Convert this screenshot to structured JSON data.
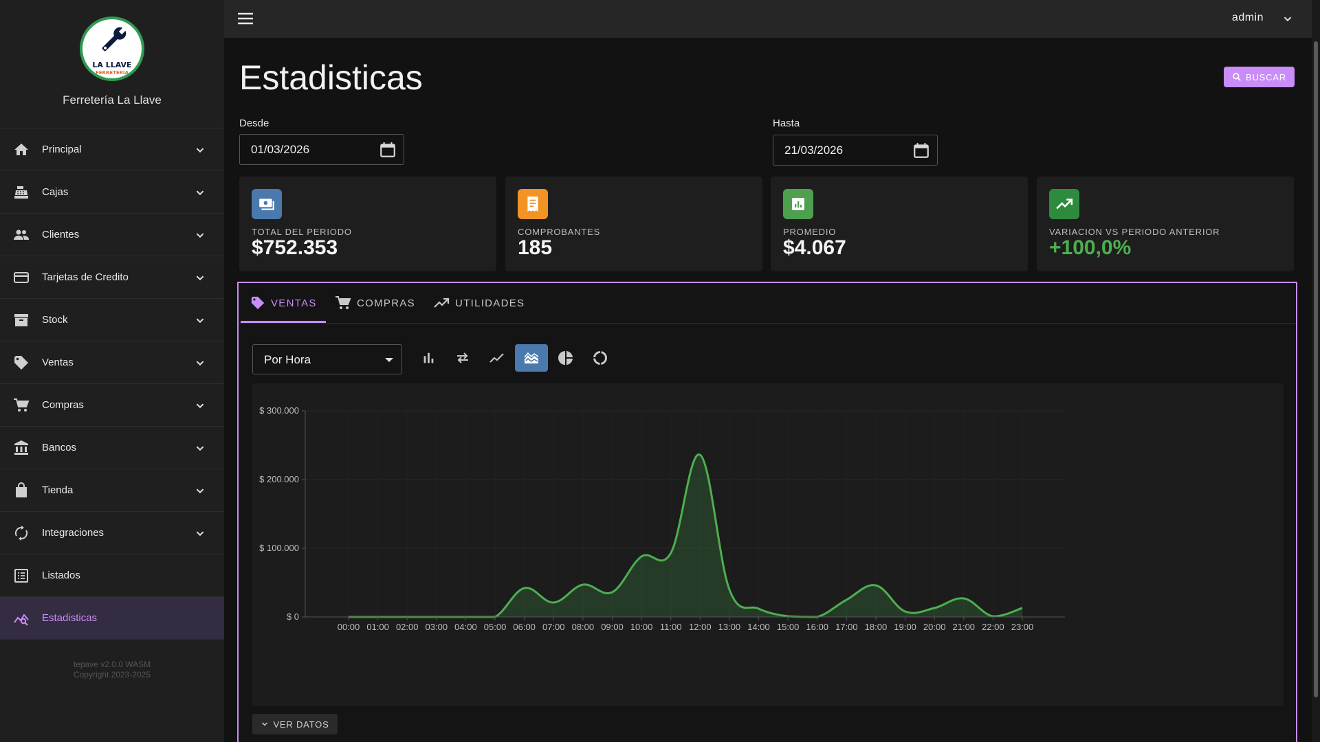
{
  "brand": {
    "logo_main": "LA LLAVE",
    "logo_sub": "FERRETERÍA",
    "name": "Ferretería La Llave"
  },
  "sidebar": {
    "items": [
      {
        "label": "Principal",
        "icon": "home-icon"
      },
      {
        "label": "Cajas",
        "icon": "cash-register-icon"
      },
      {
        "label": "Clientes",
        "icon": "people-icon"
      },
      {
        "label": "Tarjetas de Credito",
        "icon": "credit-card-icon"
      },
      {
        "label": "Stock",
        "icon": "archive-box-icon"
      },
      {
        "label": "Ventas",
        "icon": "tag-icon"
      },
      {
        "label": "Compras",
        "icon": "cart-icon"
      },
      {
        "label": "Bancos",
        "icon": "bank-icon"
      },
      {
        "label": "Tienda",
        "icon": "shopping-bag-icon"
      },
      {
        "label": "Integraciones",
        "icon": "sync-icon"
      },
      {
        "label": "Listados",
        "icon": "list-icon"
      },
      {
        "label": "Estadisticas",
        "icon": "stats-search-icon",
        "active": true
      }
    ],
    "footer_version": "tepave v2.0.0 WASM",
    "footer_copyright": "Copyright 2023-2025"
  },
  "appbar": {
    "user": "admin"
  },
  "page": {
    "title": "Estadisticas",
    "search_label": "BUSCAR"
  },
  "filters": {
    "desde_label": "Desde",
    "desde_value": "01/03/2026",
    "hasta_label": "Hasta",
    "hasta_value": "21/03/2026"
  },
  "cards": [
    {
      "label": "TOTAL DEL PERIODO",
      "value": "$752.353",
      "color": "#4a79ae",
      "value_color": "#f5f5f5"
    },
    {
      "label": "COMPROBANTES",
      "value": "185",
      "color": "#f39325",
      "value_color": "#f5f5f5"
    },
    {
      "label": "PROMEDIO",
      "value": "$4.067",
      "color": "#4ca04e",
      "value_color": "#f5f5f5"
    },
    {
      "label": "VARIACION VS PERIODO ANTERIOR",
      "value": "+100,0%",
      "color": "#2e8b3e",
      "value_color": "#4caf50"
    }
  ],
  "tabs": [
    {
      "label": "VENTAS",
      "active": true
    },
    {
      "label": "COMPRAS"
    },
    {
      "label": "UTILIDADES"
    }
  ],
  "chart_controls": {
    "group_by": "Por Hora",
    "types": [
      "bar-chart-icon",
      "swap-icon",
      "line-chart-icon",
      "area-chart-icon",
      "pie-chart-icon",
      "donut-chart-icon"
    ],
    "active_type": "area-chart-icon"
  },
  "chart_data": {
    "type": "area",
    "x": [
      "00:00",
      "01:00",
      "02:00",
      "03:00",
      "04:00",
      "05:00",
      "06:00",
      "07:00",
      "08:00",
      "09:00",
      "10:00",
      "11:00",
      "12:00",
      "13:00",
      "14:00",
      "15:00",
      "16:00",
      "17:00",
      "18:00",
      "19:00",
      "20:00",
      "21:00",
      "22:00",
      "23:00"
    ],
    "values": [
      0,
      0,
      0,
      0,
      0,
      0,
      42000,
      21000,
      47000,
      36000,
      88000,
      93000,
      236000,
      40000,
      12000,
      1000,
      0,
      25000,
      46000,
      8000,
      13000,
      27000,
      1000,
      13000
    ],
    "y_tick_labels": [
      "$ 0",
      "$ 100.000",
      "$ 200.000",
      "$ 300.000"
    ],
    "ylim": [
      0,
      300000
    ],
    "color": "#4caf50",
    "grid": true,
    "legend": "none"
  },
  "footer_button": "VER DATOS"
}
